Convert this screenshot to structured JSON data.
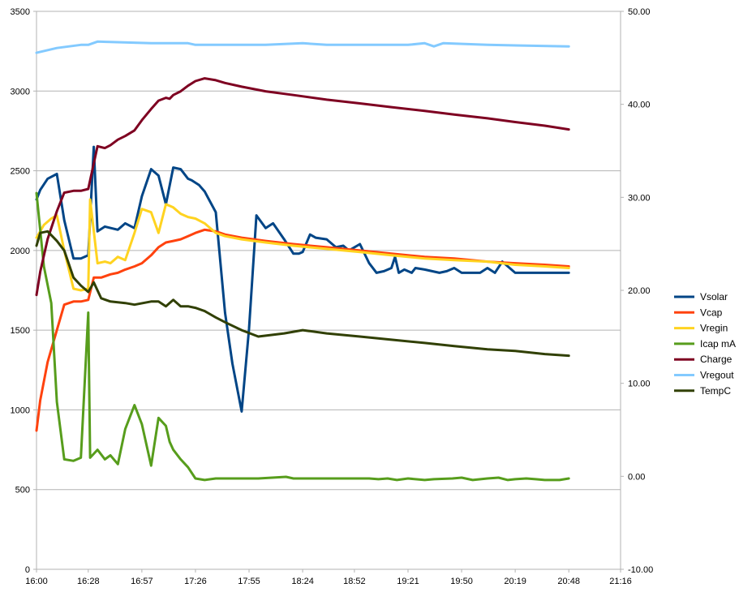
{
  "chart_data": {
    "type": "line",
    "title": "",
    "xlabel": "",
    "ylabel": "",
    "y2label": "",
    "grid": "horizontal",
    "legend_position": "right",
    "x_axis": {
      "min": "16:00",
      "max": "21:16",
      "tick_labels": [
        "16:00",
        "16:28",
        "16:57",
        "17:26",
        "17:55",
        "18:24",
        "18:52",
        "19:21",
        "19:50",
        "20:19",
        "20:48",
        "21:16"
      ]
    },
    "y_axis_left": {
      "min": 0,
      "max": 3500,
      "tick_labels": [
        "0",
        "500",
        "1000",
        "1500",
        "2000",
        "2500",
        "3000",
        "3500"
      ]
    },
    "y_axis_right": {
      "min": -10,
      "max": 50,
      "tick_labels": [
        "-10.00",
        "0.00",
        "10.00",
        "20.00",
        "30.00",
        "40.00",
        "50.00"
      ]
    },
    "series": [
      {
        "name": "Vsolar",
        "color": "#004586",
        "axis": "left",
        "x": [
          "16:00",
          "16:02",
          "16:06",
          "16:11",
          "16:15",
          "16:20",
          "16:24",
          "16:28",
          "16:31",
          "16:33",
          "16:37",
          "16:44",
          "16:48",
          "16:53",
          "16:57",
          "17:02",
          "17:06",
          "17:10",
          "17:14",
          "17:18",
          "17:22",
          "17:24",
          "17:28",
          "17:31",
          "17:37",
          "17:42",
          "17:46",
          "17:51",
          "17:55",
          "17:59",
          "18:04",
          "18:08",
          "18:14",
          "18:19",
          "18:22",
          "18:24",
          "18:28",
          "18:31",
          "18:37",
          "18:42",
          "18:46",
          "18:49",
          "18:55",
          "19:00",
          "19:04",
          "19:08",
          "19:12",
          "19:14",
          "19:16",
          "19:19",
          "19:21",
          "19:23",
          "19:25",
          "19:30",
          "19:34",
          "19:38",
          "19:42",
          "19:46",
          "19:50",
          "19:56",
          "20:00",
          "20:04",
          "20:08",
          "20:12",
          "20:15",
          "20:19",
          "20:23",
          "20:27",
          "20:31",
          "20:35",
          "20:39",
          "20:43",
          "20:48"
        ],
        "values": [
          2320,
          2380,
          2450,
          2480,
          2190,
          1950,
          1950,
          1970,
          2650,
          2120,
          2150,
          2130,
          2170,
          2140,
          2340,
          2510,
          2470,
          2290,
          2520,
          2510,
          2450,
          2440,
          2410,
          2370,
          2240,
          1610,
          1290,
          990,
          1510,
          2220,
          2140,
          2170,
          2070,
          1980,
          1980,
          1990,
          2100,
          2080,
          2070,
          2020,
          2030,
          2000,
          2040,
          1920,
          1860,
          1870,
          1890,
          1960,
          1860,
          1880,
          1870,
          1860,
          1890,
          1880,
          1870,
          1860,
          1870,
          1890,
          1860,
          1860,
          1860,
          1890,
          1860,
          1930,
          1900,
          1860,
          1860,
          1860,
          1860,
          1860,
          1860,
          1860,
          1860
        ]
      },
      {
        "name": "Vcap",
        "color": "#ff420e",
        "axis": "left",
        "x": [
          "16:00",
          "16:02",
          "16:06",
          "16:11",
          "16:15",
          "16:20",
          "16:24",
          "16:28",
          "16:31",
          "16:35",
          "16:40",
          "16:44",
          "16:48",
          "16:53",
          "16:57",
          "17:02",
          "17:06",
          "17:10",
          "17:14",
          "17:18",
          "17:22",
          "17:26",
          "17:31",
          "17:37",
          "17:42",
          "17:51",
          "18:04",
          "18:19",
          "18:37",
          "18:55",
          "19:12",
          "19:30",
          "19:46",
          "20:04",
          "20:19",
          "20:35",
          "20:48"
        ],
        "values": [
          870,
          1060,
          1300,
          1500,
          1660,
          1680,
          1680,
          1690,
          1830,
          1830,
          1850,
          1860,
          1880,
          1900,
          1920,
          1970,
          2020,
          2050,
          2060,
          2070,
          2090,
          2110,
          2130,
          2120,
          2100,
          2080,
          2060,
          2040,
          2020,
          2000,
          1980,
          1960,
          1950,
          1930,
          1920,
          1910,
          1900
        ]
      },
      {
        "name": "Vregin",
        "color": "#ffd320",
        "axis": "left",
        "x": [
          "16:00",
          "16:04",
          "16:08",
          "16:11",
          "16:15",
          "16:20",
          "16:24",
          "16:28",
          "16:29",
          "16:33",
          "16:37",
          "16:40",
          "16:44",
          "16:48",
          "16:53",
          "16:57",
          "17:02",
          "17:06",
          "17:10",
          "17:12",
          "17:14",
          "17:18",
          "17:22",
          "17:26",
          "17:31",
          "17:37",
          "17:42",
          "17:51",
          "18:04",
          "18:19",
          "18:37",
          "18:55",
          "19:12",
          "19:30",
          "19:46",
          "20:04",
          "20:19",
          "20:35",
          "20:48"
        ],
        "values": [
          2080,
          2160,
          2200,
          2220,
          2000,
          1760,
          1750,
          1760,
          2320,
          1920,
          1930,
          1920,
          1960,
          1940,
          2110,
          2260,
          2240,
          2110,
          2290,
          2280,
          2270,
          2230,
          2210,
          2200,
          2170,
          2110,
          2090,
          2070,
          2050,
          2030,
          2010,
          1990,
          1970,
          1950,
          1940,
          1930,
          1910,
          1900,
          1890
        ]
      },
      {
        "name": "Icap mA",
        "color": "#579d1c",
        "axis": "left",
        "x": [
          "16:00",
          "16:04",
          "16:08",
          "16:11",
          "16:15",
          "16:20",
          "16:24",
          "16:28",
          "16:29",
          "16:33",
          "16:37",
          "16:40",
          "16:44",
          "16:48",
          "16:53",
          "16:57",
          "17:02",
          "17:06",
          "17:10",
          "17:12",
          "17:14",
          "17:18",
          "17:22",
          "17:26",
          "17:31",
          "17:37",
          "17:42",
          "17:46",
          "17:51",
          "18:00",
          "18:15",
          "18:19",
          "18:24",
          "18:30",
          "18:40",
          "18:52",
          "19:00",
          "19:05",
          "19:10",
          "19:15",
          "19:21",
          "19:30",
          "19:35",
          "19:45",
          "19:50",
          "19:56",
          "20:04",
          "20:10",
          "20:15",
          "20:19",
          "20:25",
          "20:30",
          "20:35",
          "20:43",
          "20:48"
        ],
        "values": [
          2360,
          1900,
          1670,
          1050,
          690,
          680,
          700,
          1610,
          700,
          750,
          690,
          715,
          660,
          880,
          1030,
          910,
          650,
          950,
          900,
          800,
          750,
          690,
          640,
          570,
          560,
          570,
          570,
          570,
          570,
          570,
          580,
          570,
          570,
          570,
          570,
          570,
          570,
          565,
          570,
          560,
          570,
          560,
          565,
          570,
          575,
          560,
          570,
          575,
          560,
          565,
          570,
          565,
          560,
          560,
          570
        ]
      },
      {
        "name": "Charge",
        "color": "#7e0021",
        "axis": "right",
        "x": [
          "16:00",
          "16:02",
          "16:06",
          "16:11",
          "16:15",
          "16:20",
          "16:24",
          "16:28",
          "16:33",
          "16:37",
          "16:40",
          "16:44",
          "16:48",
          "16:53",
          "16:57",
          "17:02",
          "17:06",
          "17:10",
          "17:12",
          "17:14",
          "17:18",
          "17:22",
          "17:26",
          "17:31",
          "17:37",
          "17:42",
          "17:51",
          "18:04",
          "18:19",
          "18:37",
          "18:55",
          "19:12",
          "19:30",
          "19:46",
          "20:04",
          "20:19",
          "20:35",
          "20:48"
        ],
        "values": [
          19.5,
          22,
          25.5,
          28.5,
          30.5,
          30.7,
          30.7,
          30.9,
          35.5,
          35.3,
          35.6,
          36.2,
          36.6,
          37.2,
          38.3,
          39.5,
          40.4,
          40.7,
          40.6,
          41.0,
          41.4,
          42.0,
          42.5,
          42.8,
          42.6,
          42.3,
          41.9,
          41.4,
          41.0,
          40.5,
          40.1,
          39.7,
          39.3,
          38.9,
          38.5,
          38.1,
          37.7,
          37.3
        ]
      },
      {
        "name": "Vregout",
        "color": "#83caff",
        "axis": "left",
        "x": [
          "16:00",
          "16:11",
          "16:24",
          "16:28",
          "16:33",
          "17:02",
          "17:22",
          "17:26",
          "17:46",
          "18:04",
          "18:24",
          "18:37",
          "19:12",
          "19:21",
          "19:30",
          "19:35",
          "19:40",
          "20:04",
          "20:48"
        ],
        "values": [
          3240,
          3270,
          3290,
          3290,
          3310,
          3300,
          3300,
          3290,
          3290,
          3290,
          3300,
          3290,
          3290,
          3290,
          3300,
          3280,
          3300,
          3290,
          3280
        ]
      },
      {
        "name": "TempC",
        "color": "#314004",
        "axis": "left",
        "x": [
          "16:00",
          "16:02",
          "16:06",
          "16:11",
          "16:15",
          "16:20",
          "16:24",
          "16:28",
          "16:31",
          "16:35",
          "16:40",
          "16:48",
          "16:53",
          "17:02",
          "17:06",
          "17:10",
          "17:14",
          "17:18",
          "17:22",
          "17:26",
          "17:31",
          "17:37",
          "17:42",
          "17:51",
          "18:00",
          "18:14",
          "18:24",
          "18:37",
          "18:55",
          "19:12",
          "19:30",
          "19:46",
          "20:04",
          "20:19",
          "20:35",
          "20:48"
        ],
        "values": [
          2030,
          2110,
          2120,
          2060,
          2000,
          1830,
          1780,
          1740,
          1800,
          1700,
          1680,
          1670,
          1660,
          1680,
          1680,
          1650,
          1690,
          1650,
          1650,
          1640,
          1620,
          1580,
          1550,
          1500,
          1460,
          1480,
          1500,
          1480,
          1460,
          1440,
          1420,
          1400,
          1380,
          1370,
          1350,
          1340
        ]
      }
    ]
  }
}
